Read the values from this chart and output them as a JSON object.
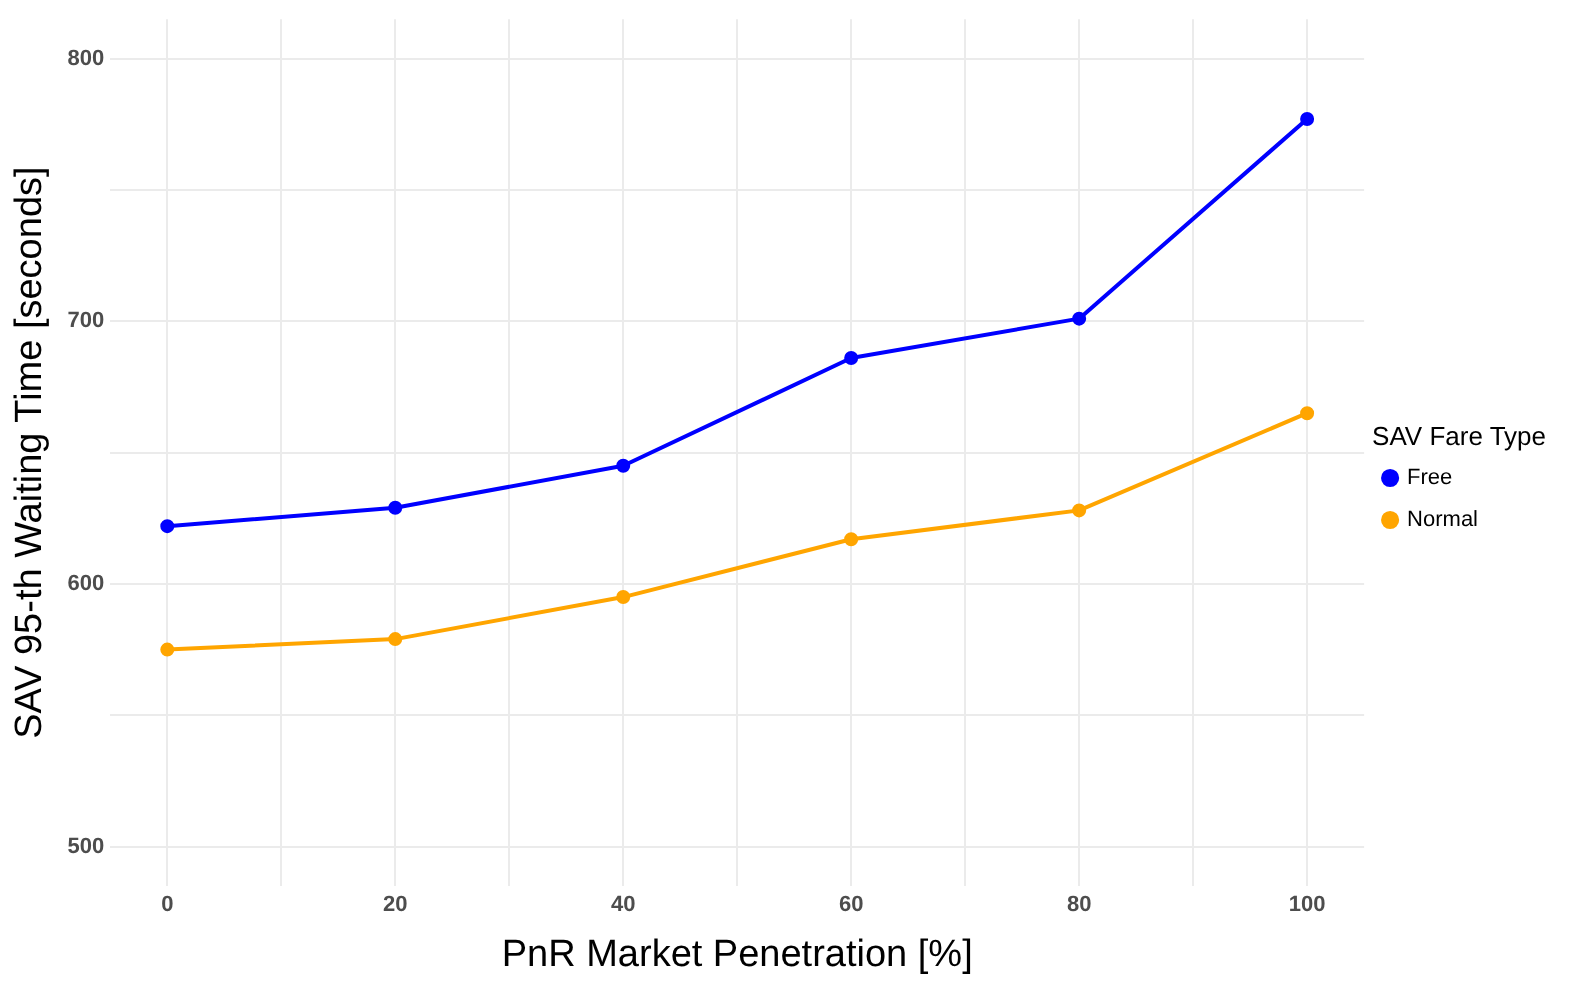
{
  "chart_data": {
    "type": "line",
    "xlabel": "PnR Market Penetration [%]",
    "ylabel": "SAV 95-th Waiting Time [seconds]",
    "legend_title": "SAV Fare Type",
    "x": [
      0,
      20,
      40,
      60,
      80,
      100
    ],
    "series": [
      {
        "name": "Free",
        "color": "#0000ff",
        "values": [
          622,
          629,
          645,
          686,
          701,
          777
        ]
      },
      {
        "name": "Normal",
        "color": "#ffa500",
        "values": [
          575,
          579,
          595,
          617,
          628,
          665
        ]
      }
    ],
    "xlim": [
      -5,
      105
    ],
    "xticks": [
      0,
      {
        "value": 10,
        "label": null
      },
      20,
      {
        "value": 30,
        "label": null
      },
      40,
      {
        "value": 50,
        "label": null
      },
      60,
      {
        "value": 70,
        "label": null
      },
      80,
      {
        "value": 90,
        "label": null
      },
      100
    ],
    "ylim": [
      485,
      815
    ],
    "yticks": [
      500,
      {
        "value": 550,
        "label": null
      },
      600,
      {
        "value": 650,
        "label": null
      },
      700,
      {
        "value": 750,
        "label": null
      },
      800
    ],
    "grid": true,
    "legend": "right",
    "marker": "circle",
    "line_style": "solid"
  }
}
